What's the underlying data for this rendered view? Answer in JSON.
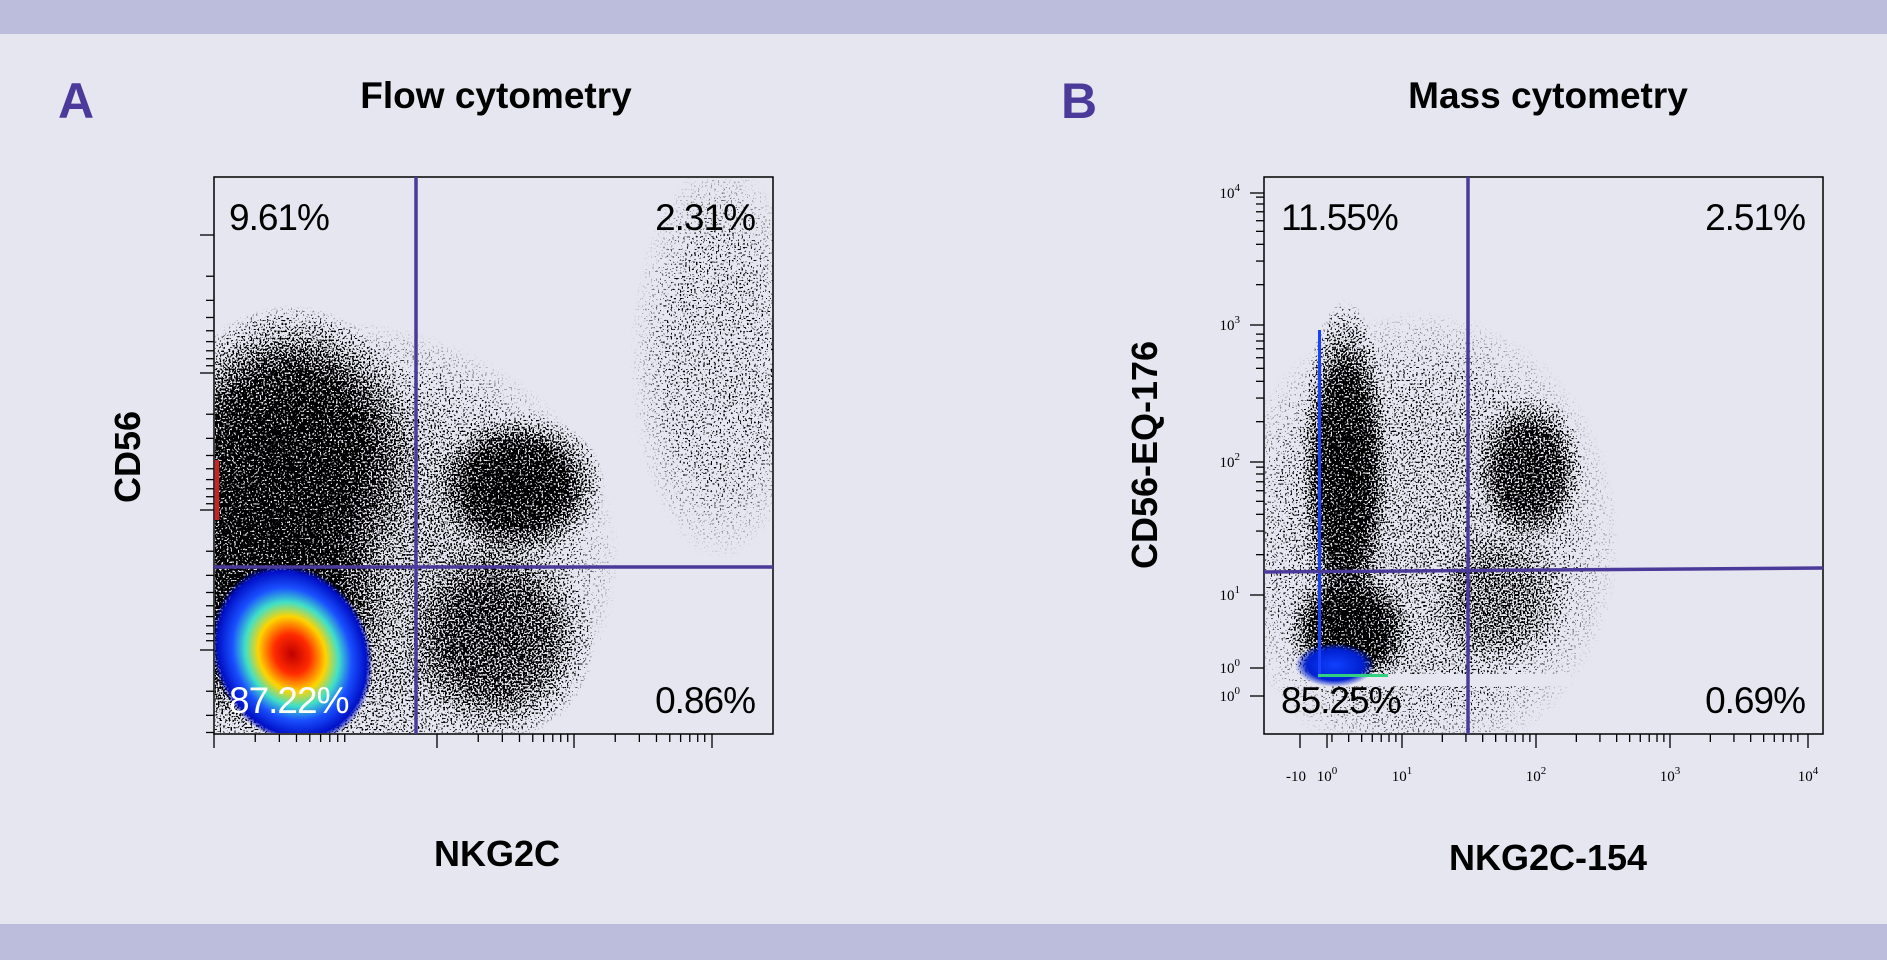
{
  "panels": [
    {
      "letter": "A",
      "title": "Flow cytometry",
      "x_label": "NKG2C",
      "y_label": "CD56",
      "quadrants": {
        "upper_left": "9.61%",
        "upper_right": "2.31%",
        "lower_left": "87.22%",
        "lower_right": "0.86%"
      }
    },
    {
      "letter": "B",
      "title": "Mass cytometry",
      "x_label": "NKG2C-154",
      "y_label": "CD56-EQ-176",
      "quadrants": {
        "upper_left": "11.55%",
        "upper_right": "2.51%",
        "lower_left": "85.25%",
        "lower_right": "0.69%"
      },
      "x_ticks": [
        {
          "base": "-10"
        },
        {
          "base": "10",
          "exp": "0"
        },
        {
          "base": "10",
          "exp": "1"
        },
        {
          "base": "10",
          "exp": "2"
        },
        {
          "base": "10",
          "exp": "3"
        },
        {
          "base": "10",
          "exp": "4"
        }
      ],
      "y_ticks": [
        {
          "base": "10",
          "exp": "4"
        },
        {
          "base": "10",
          "exp": "3"
        },
        {
          "base": "10",
          "exp": "2"
        },
        {
          "base": "10",
          "exp": "1"
        },
        {
          "base": "10",
          "exp": "0"
        },
        {
          "base": "10",
          "exp": "0"
        }
      ]
    }
  ]
}
